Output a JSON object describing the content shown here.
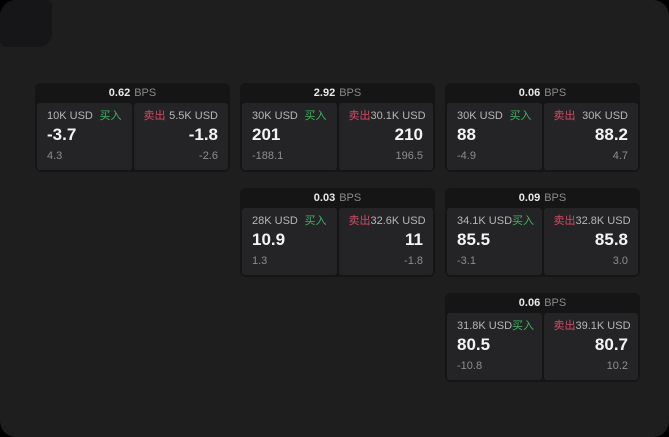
{
  "colors": {
    "page_bg": "#1e1e1f",
    "card_bg": "#151516",
    "pane_bg": "#242427",
    "buy_green": "#3db463",
    "sell_red": "#d14a63"
  },
  "cards": [
    {
      "header": {
        "value": "0.62",
        "unit": "BPS"
      },
      "buy": {
        "amount": "10K USD",
        "action": "买入",
        "price": "-3.7",
        "change": "4.3"
      },
      "sell": {
        "action": "卖出",
        "amount": "5.5K USD",
        "price": "-1.8",
        "change": "-2.6"
      }
    },
    {
      "header": {
        "value": "2.92",
        "unit": "BPS"
      },
      "buy": {
        "amount": "30K USD",
        "action": "买入",
        "price": "201",
        "change": "-188.1"
      },
      "sell": {
        "action": "卖出",
        "amount": "30.1K USD",
        "price": "210",
        "change": "196.5"
      }
    },
    {
      "header": {
        "value": "0.06",
        "unit": "BPS"
      },
      "buy": {
        "amount": "30K USD",
        "action": "买入",
        "price": "88",
        "change": "-4.9"
      },
      "sell": {
        "action": "卖出",
        "amount": "30K USD",
        "price": "88.2",
        "change": "4.7"
      }
    },
    {
      "header": {
        "value": "0.03",
        "unit": "BPS"
      },
      "buy": {
        "amount": "28K USD",
        "action": "买入",
        "price": "10.9",
        "change": "1.3"
      },
      "sell": {
        "action": "卖出",
        "amount": "32.6K USD",
        "price": "11",
        "change": "-1.8"
      }
    },
    {
      "header": {
        "value": "0.09",
        "unit": "BPS"
      },
      "buy": {
        "amount": "34.1K USD",
        "action": "买入",
        "price": "85.5",
        "change": "-3.1"
      },
      "sell": {
        "action": "卖出",
        "amount": "32.8K USD",
        "price": "85.8",
        "change": "3.0"
      }
    },
    {
      "header": {
        "value": "0.06",
        "unit": "BPS"
      },
      "buy": {
        "amount": "31.8K USD",
        "action": "买入",
        "price": "80.5",
        "change": "-10.8"
      },
      "sell": {
        "action": "卖出",
        "amount": "39.1K USD",
        "price": "80.7",
        "change": "10.2"
      }
    }
  ]
}
